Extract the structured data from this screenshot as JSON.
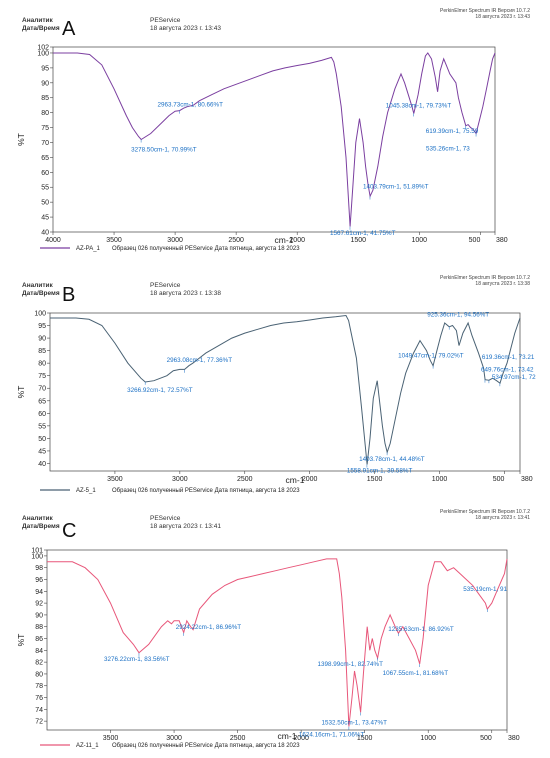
{
  "panels": [
    {
      "letter": "A",
      "header": {
        "analyst_label": "Аналитик",
        "datetime_label": "Дата/Время",
        "service": "PEService",
        "date": "18 августа 2023 г. 13:43",
        "software_line1": "PerkinElmer Spectrum IR Версия 10.7.2",
        "software_line2": "18 августа 2023 г. 13:43"
      },
      "legend": {
        "series": "AZ-PA_1",
        "description": "Образец 026 полученный PEService Дата пятница, августа 18 2023"
      }
    },
    {
      "letter": "B",
      "header": {
        "analyst_label": "Аналитик",
        "datetime_label": "Дата/Время",
        "service": "PEService",
        "date": "18 августа 2023 г. 13:38",
        "software_line1": "PerkinElmer Spectrum IR Версия 10.7.2",
        "software_line2": "18 августа 2023 г. 13:38"
      },
      "legend": {
        "series": "AZ-5_1",
        "description": "Образец 026 полученный PEService Дата пятница, августа 18 2023"
      }
    },
    {
      "letter": "C",
      "header": {
        "analyst_label": "Аналитик",
        "datetime_label": "Дата/Время",
        "service": "PEService",
        "date": "18 августа 2023 г. 13:41",
        "software_line1": "PerkinElmer Spectrum IR Версия 10.7.2",
        "software_line2": "18 августа 2023 г. 13:41"
      },
      "legend": {
        "series": "AZ-11_1",
        "description": "Образец 026 полученный PEService Дата пятница, августа 18 2023"
      }
    }
  ],
  "chart_data": [
    {
      "type": "line",
      "xlabel": "cm-1",
      "ylabel": "%T",
      "xlim": [
        4000,
        380
      ],
      "ylim": [
        40,
        102
      ],
      "x_ticks": [
        4000,
        3500,
        3000,
        2500,
        2000,
        1500,
        1000,
        500,
        380
      ],
      "x_tick_labels": [
        "4000",
        "3500",
        "3000",
        "2500",
        "2000",
        "1500",
        "1000",
        "500",
        "380"
      ],
      "y_ticks": [
        40,
        45,
        50,
        55,
        60,
        65,
        70,
        75,
        80,
        85,
        90,
        95,
        100,
        102
      ],
      "color": "#7b3fa0",
      "label_color": "#1a6fc4",
      "series": [
        {
          "name": "AZ-PA_1",
          "x": [
            4000,
            3800,
            3700,
            3600,
            3500,
            3400,
            3350,
            3300,
            3278,
            3200,
            3100,
            3050,
            3000,
            2963,
            2930,
            2900,
            2850,
            2800,
            2700,
            2600,
            2500,
            2400,
            2300,
            2200,
            2100,
            2000,
            1900,
            1800,
            1720,
            1700,
            1680,
            1640,
            1600,
            1567,
            1545,
            1520,
            1490,
            1460,
            1440,
            1420,
            1403,
            1380,
            1340,
            1300,
            1260,
            1200,
            1150,
            1120,
            1090,
            1060,
            1045,
            1010,
            980,
            950,
            930,
            900,
            870,
            850,
            830,
            800,
            780,
            750,
            700,
            680,
            650,
            619,
            600,
            580,
            560,
            535,
            510,
            480,
            450,
            420,
            400,
            380
          ],
          "y": [
            100,
            100,
            99.5,
            96,
            88,
            79,
            75,
            72,
            71,
            73,
            77,
            79,
            80.5,
            80.7,
            81.5,
            82,
            82.5,
            84,
            86,
            88,
            89.5,
            91,
            92.5,
            94,
            95,
            95.8,
            96.5,
            97.5,
            98.5,
            97,
            93,
            82,
            65,
            41.8,
            55,
            70,
            78,
            70,
            62,
            56,
            52,
            54,
            62,
            72,
            80,
            88,
            93,
            90,
            86,
            82,
            79.7,
            86,
            93,
            99,
            100,
            98,
            92,
            87,
            94,
            98,
            96,
            93,
            90,
            85,
            80,
            75.6,
            76,
            75,
            74.5,
            73,
            77,
            82,
            88,
            94,
            98,
            100
          ]
        }
      ],
      "annotations": [
        {
          "text": "3278.50cm-1, 70.99%T",
          "x": 3278.5,
          "y": 70.99
        },
        {
          "text": "2963.73cm-1, 80.66%T",
          "x": 2963.73,
          "y": 80.66
        },
        {
          "text": "1567.61cm-1, 41.75%T",
          "x": 1567.61,
          "y": 41.75
        },
        {
          "text": "1403.79cm-1, 51.89%T",
          "x": 1403.79,
          "y": 51.89
        },
        {
          "text": "1045.38cm-1, 79.73%T",
          "x": 1045.38,
          "y": 79.73
        },
        {
          "text": "619.39cm-1, 75.59",
          "x": 619.39,
          "y": 75.59
        },
        {
          "text": "535.26cm-1, 73",
          "x": 535.26,
          "y": 73
        }
      ]
    },
    {
      "type": "line",
      "xlabel": "cm-1",
      "ylabel": "%T",
      "xlim": [
        4000,
        380
      ],
      "ylim": [
        37,
        100
      ],
      "x_ticks": [
        3500,
        3000,
        2500,
        2000,
        1500,
        1000,
        500,
        380
      ],
      "x_tick_labels": [
        "3500",
        "3000",
        "2500",
        "2000",
        "1500",
        "1000",
        "500",
        "380"
      ],
      "y_ticks": [
        40,
        45,
        50,
        55,
        60,
        65,
        70,
        75,
        80,
        85,
        90,
        95,
        100
      ],
      "color": "#4a6274",
      "label_color": "#1a6fc4",
      "series": [
        {
          "name": "AZ-5_1",
          "x": [
            4000,
            3800,
            3700,
            3600,
            3500,
            3400,
            3300,
            3266,
            3200,
            3100,
            3050,
            3000,
            2963,
            2930,
            2900,
            2850,
            2800,
            2700,
            2600,
            2500,
            2400,
            2300,
            2200,
            2100,
            2000,
            1900,
            1800,
            1720,
            1700,
            1680,
            1640,
            1600,
            1558,
            1535,
            1510,
            1480,
            1460,
            1440,
            1420,
            1403,
            1380,
            1340,
            1300,
            1260,
            1200,
            1150,
            1100,
            1070,
            1049,
            1020,
            990,
            960,
            925,
            900,
            870,
            850,
            820,
            780,
            750,
            700,
            660,
            649,
            619,
            590,
            560,
            534,
            510,
            480,
            450,
            420,
            400,
            380
          ],
          "y": [
            98,
            98,
            97.5,
            95,
            88,
            80,
            74,
            72.5,
            73,
            75,
            77,
            77.5,
            77.5,
            79,
            80,
            82,
            84,
            87,
            90,
            92,
            93.5,
            95,
            96,
            96.5,
            97.2,
            98,
            98.5,
            99,
            97,
            92,
            82,
            62,
            39.6,
            50,
            66,
            73,
            64,
            55,
            48,
            44.5,
            48,
            58,
            68,
            76,
            84,
            89,
            85,
            81,
            79,
            85,
            91,
            96,
            94.5,
            95,
            93,
            87,
            92,
            96,
            91,
            84,
            78,
            73.4,
            73.2,
            74,
            73,
            72,
            76,
            80,
            86,
            92,
            95,
            98
          ]
        }
      ],
      "annotations": [
        {
          "text": "3266.92cm-1, 72.57%T",
          "x": 3266.92,
          "y": 72.57
        },
        {
          "text": "2963.08cm-1, 77.36%T",
          "x": 2963.08,
          "y": 77.36
        },
        {
          "text": "1558.91cm-1, 39.58%T",
          "x": 1558.91,
          "y": 39.58
        },
        {
          "text": "1403.78cm-1, 44.48%T",
          "x": 1403.78,
          "y": 44.48
        },
        {
          "text": "1049.47cm-1, 79.02%T",
          "x": 1049.47,
          "y": 79.02
        },
        {
          "text": "925.36cm-1, 94.56%T",
          "x": 925.36,
          "y": 94.56
        },
        {
          "text": "619.36cm-1, 73.21",
          "x": 619.36,
          "y": 73.21
        },
        {
          "text": "649.76cm-1, 73.42",
          "x": 649.76,
          "y": 73.42
        },
        {
          "text": "534.97cm-1, 72",
          "x": 534.97,
          "y": 72
        }
      ]
    },
    {
      "type": "line",
      "xlabel": "cm-1",
      "ylabel": "%T",
      "xlim": [
        4000,
        380
      ],
      "ylim": [
        70.5,
        101
      ],
      "x_ticks": [
        3500,
        3000,
        2500,
        2000,
        1500,
        1000,
        500,
        380
      ],
      "x_tick_labels": [
        "3500",
        "3000",
        "2500",
        "2000",
        "1500",
        "1000",
        "500",
        "380"
      ],
      "y_ticks": [
        72,
        74,
        76,
        78,
        80,
        82,
        84,
        86,
        88,
        90,
        92,
        94,
        96,
        98,
        100,
        101
      ],
      "color": "#e8577a",
      "label_color": "#1a6fc4",
      "series": [
        {
          "name": "AZ-11_1",
          "x": [
            4000,
            3800,
            3700,
            3600,
            3500,
            3400,
            3320,
            3276,
            3200,
            3100,
            3050,
            3020,
            3000,
            2960,
            2924,
            2900,
            2870,
            2850,
            2800,
            2700,
            2600,
            2500,
            2400,
            2300,
            2200,
            2100,
            2000,
            1900,
            1800,
            1720,
            1700,
            1680,
            1650,
            1624,
            1600,
            1580,
            1560,
            1532,
            1510,
            1480,
            1460,
            1440,
            1420,
            1398,
            1370,
            1340,
            1300,
            1260,
            1235,
            1200,
            1150,
            1100,
            1067,
            1040,
            1000,
            950,
            900,
            850,
            800,
            750,
            700,
            650,
            600,
            550,
            535,
            500,
            460,
            420,
            400,
            380
          ],
          "y": [
            99,
            99,
            98,
            96,
            92,
            87,
            85,
            83.6,
            85,
            88,
            89,
            88.5,
            89,
            89,
            87,
            89,
            88,
            87.5,
            91,
            93.5,
            95,
            96,
            96.5,
            97,
            97.5,
            98,
            98.5,
            99,
            99.5,
            99.5,
            97,
            93,
            84,
            71.1,
            76,
            80.5,
            78,
            73.5,
            80,
            88,
            84,
            86,
            84,
            82.7,
            86,
            88,
            90,
            88,
            86.9,
            88,
            86,
            84,
            81.7,
            86,
            95,
            99,
            99,
            97.5,
            98,
            97,
            96,
            95,
            93.5,
            92,
            91,
            92,
            94,
            96,
            97,
            99.5
          ]
        }
      ],
      "annotations": [
        {
          "text": "3276.22cm-1, 83.56%T",
          "x": 3276.22,
          "y": 83.56
        },
        {
          "text": "2924.22cm-1, 86.96%T",
          "x": 2924.22,
          "y": 86.96
        },
        {
          "text": "1624.16cm-1, 71.06%T",
          "x": 1624.16,
          "y": 71.06
        },
        {
          "text": "1532.50cm-1, 73.47%T",
          "x": 1532.5,
          "y": 73.47
        },
        {
          "text": "1398.99cm-1, 82.74%T",
          "x": 1398.99,
          "y": 82.74
        },
        {
          "text": "1235.63cm-1, 86.92%T",
          "x": 1235.63,
          "y": 86.92
        },
        {
          "text": "1067.55cm-1, 81.68%T",
          "x": 1067.55,
          "y": 81.68
        },
        {
          "text": "535.19cm-1, 91",
          "x": 535.19,
          "y": 91
        }
      ]
    }
  ]
}
